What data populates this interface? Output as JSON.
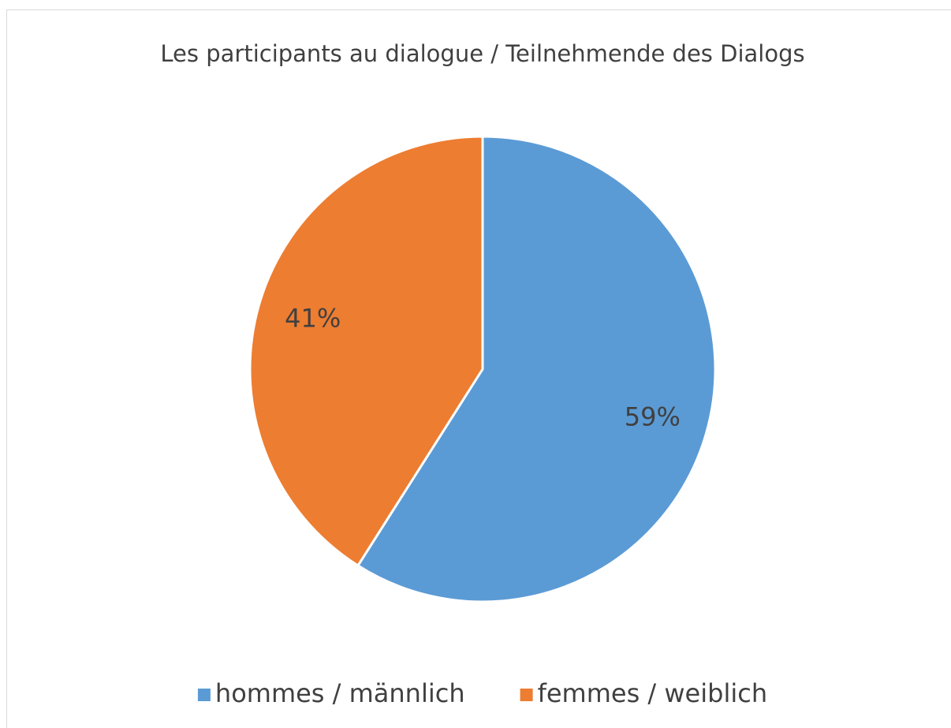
{
  "chart_data": {
    "type": "pie",
    "title": "Les participants au dialogue / Teilnehmende des Dialogs",
    "categories": [
      "hommes / männlich",
      "femmes / weiblich"
    ],
    "values": [
      59,
      41
    ],
    "value_labels": [
      "59%",
      "41%"
    ],
    "colors": [
      "#5b9bd5",
      "#ed7d31"
    ],
    "legend": "bottom"
  }
}
